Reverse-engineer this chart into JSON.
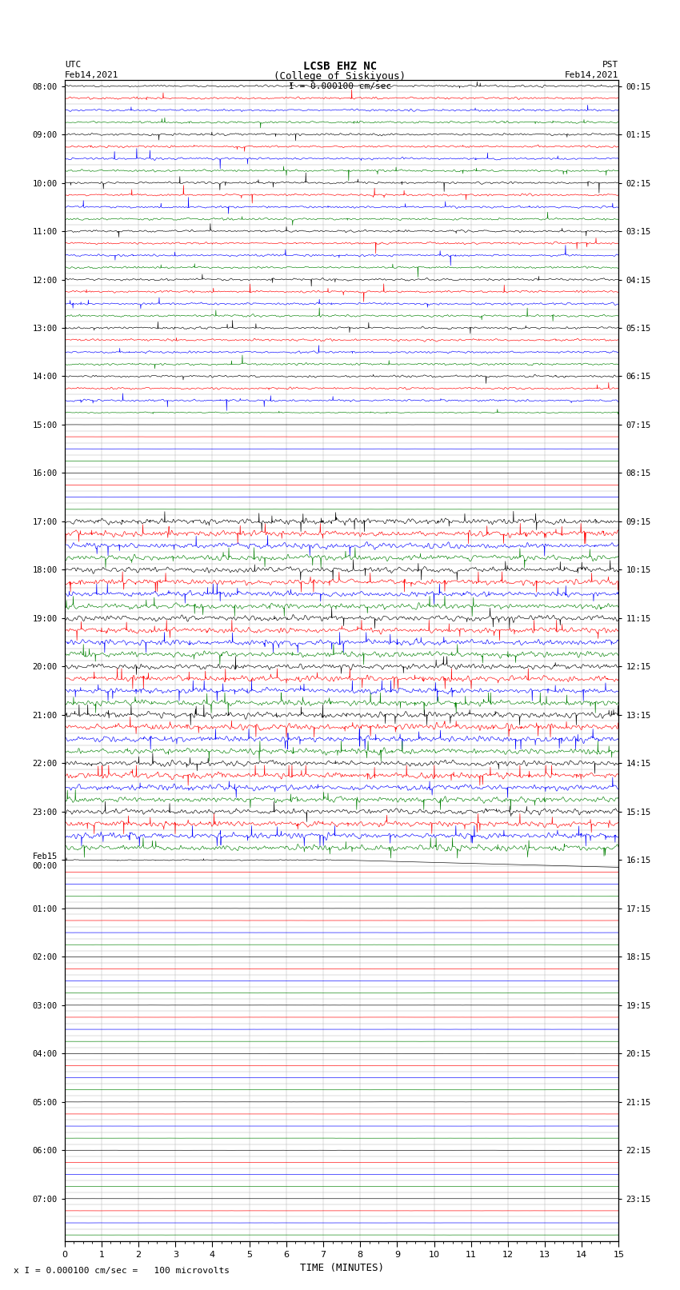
{
  "title_line1": "LCSB EHZ NC",
  "title_line2": "(College of Siskiyous)",
  "scale_label": "I = 0.000100 cm/sec",
  "xlabel": "TIME (MINUTES)",
  "footer": "x I = 0.000100 cm/sec =   100 microvolts",
  "left_times": [
    "08:00",
    "",
    "",
    "",
    "09:00",
    "",
    "",
    "",
    "10:00",
    "",
    "",
    "",
    "11:00",
    "",
    "",
    "",
    "12:00",
    "",
    "",
    "",
    "13:00",
    "",
    "",
    "",
    "14:00",
    "",
    "",
    "",
    "15:00",
    "",
    "",
    "",
    "16:00",
    "",
    "",
    "",
    "17:00",
    "",
    "",
    "",
    "18:00",
    "",
    "",
    "",
    "19:00",
    "",
    "",
    "",
    "20:00",
    "",
    "",
    "",
    "21:00",
    "",
    "",
    "",
    "22:00",
    "",
    "",
    "",
    "23:00",
    "",
    "",
    "",
    "Feb15\n00:00",
    "",
    "",
    "",
    "01:00",
    "",
    "",
    "",
    "02:00",
    "",
    "",
    "",
    "03:00",
    "",
    "",
    "",
    "04:00",
    "",
    "",
    "",
    "05:00",
    "",
    "",
    "",
    "06:00",
    "",
    "",
    "",
    "07:00",
    "",
    "",
    ""
  ],
  "right_times": [
    "00:15",
    "",
    "",
    "",
    "01:15",
    "",
    "",
    "",
    "02:15",
    "",
    "",
    "",
    "03:15",
    "",
    "",
    "",
    "04:15",
    "",
    "",
    "",
    "05:15",
    "",
    "",
    "",
    "06:15",
    "",
    "",
    "",
    "07:15",
    "",
    "",
    "",
    "08:15",
    "",
    "",
    "",
    "09:15",
    "",
    "",
    "",
    "10:15",
    "",
    "",
    "",
    "11:15",
    "",
    "",
    "",
    "12:15",
    "",
    "",
    "",
    "13:15",
    "",
    "",
    "",
    "14:15",
    "",
    "",
    "",
    "15:15",
    "",
    "",
    "",
    "16:15",
    "",
    "",
    "",
    "17:15",
    "",
    "",
    "",
    "18:15",
    "",
    "",
    "",
    "19:15",
    "",
    "",
    "",
    "20:15",
    "",
    "",
    "",
    "21:15",
    "",
    "",
    "",
    "22:15",
    "",
    "",
    "",
    "23:15",
    "",
    "",
    ""
  ],
  "colors": [
    "black",
    "red",
    "blue",
    "green"
  ],
  "n_rows": 96,
  "n_minutes": 15,
  "bg_color": "white",
  "grid_color": "#aaaaaa"
}
